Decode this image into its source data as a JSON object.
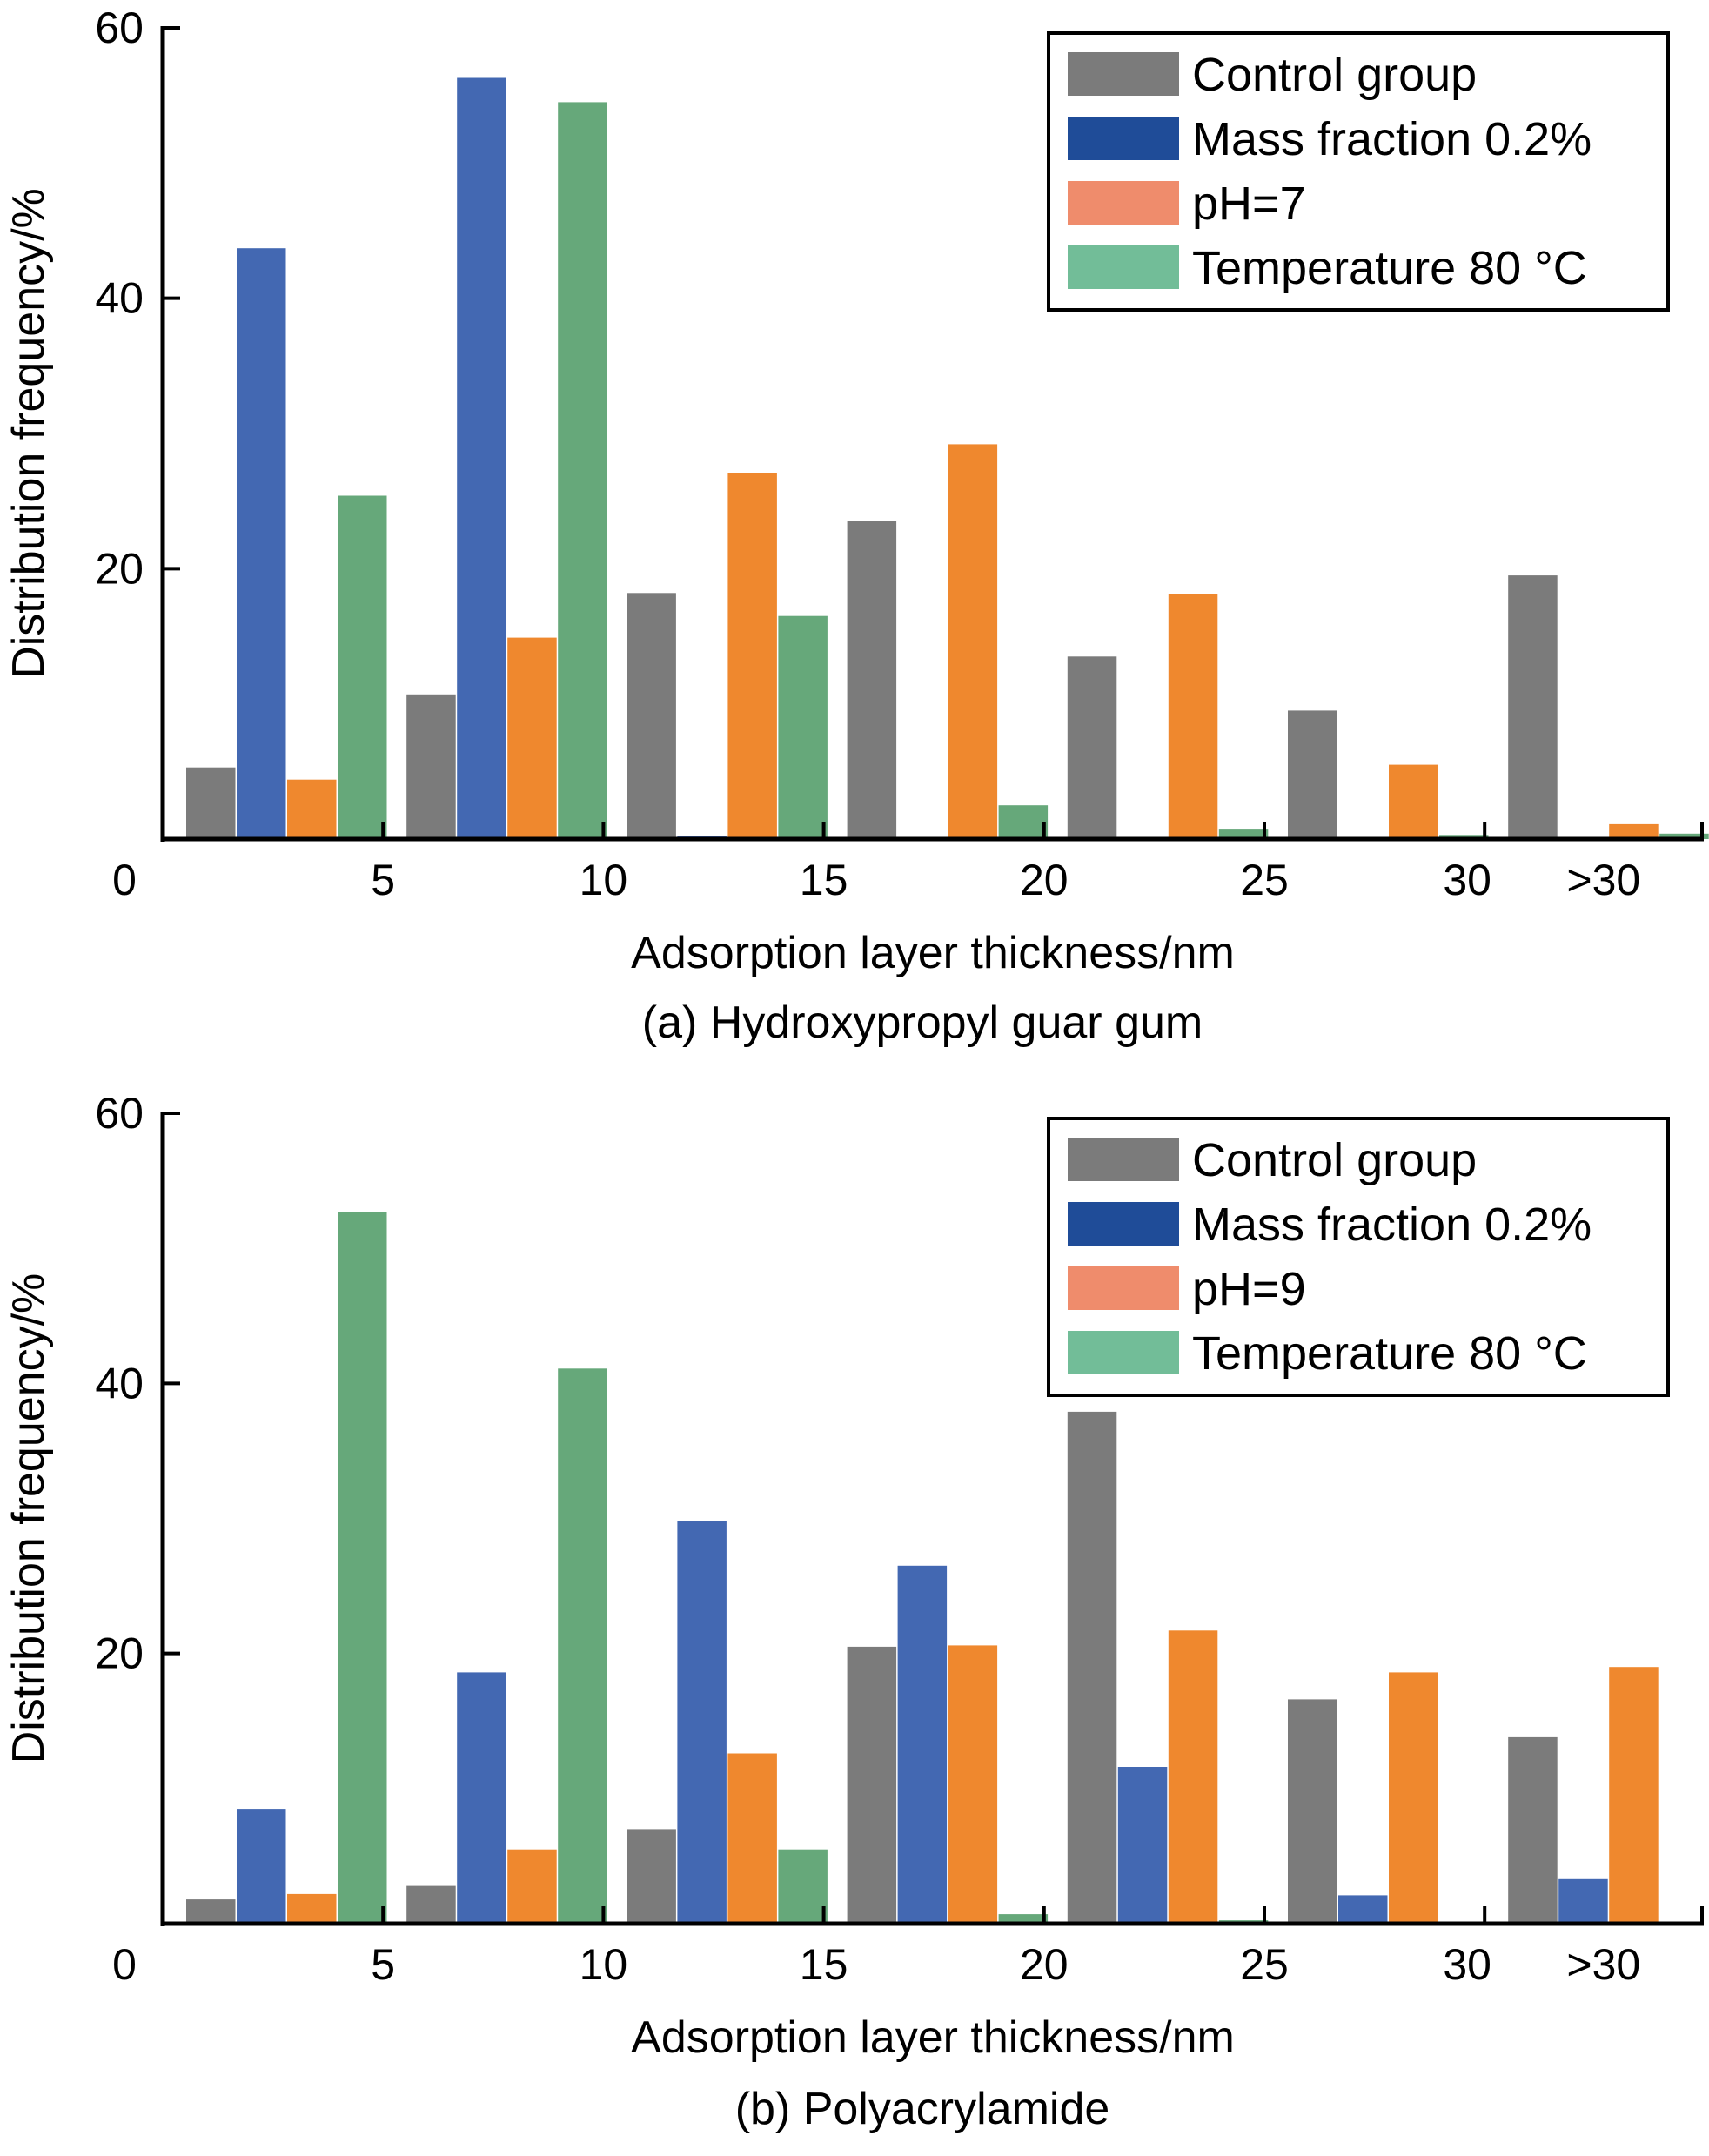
{
  "chart_data": [
    {
      "type": "bar",
      "title": "(a) Hydroxypropyl guar gum",
      "xlabel": "Adsorption layer thickness/nm",
      "ylabel": "Distribution frequency/%",
      "ylim": [
        0,
        60
      ],
      "yticks": [
        "0",
        "20",
        "40",
        "60"
      ],
      "xtick_labels": [
        "0",
        "5",
        "10",
        "15",
        "20",
        "25",
        "30",
        ">30"
      ],
      "categories": [
        "0-5",
        "5-10",
        "10-15",
        "15-20",
        "20-25",
        "25-30",
        ">30"
      ],
      "legend_position": "top-right",
      "grid": false,
      "series": [
        {
          "name": "Control group",
          "color": "#7b7b7b",
          "legend_color": "#7b7b7b",
          "values": [
            5.3,
            10.7,
            18.2,
            23.5,
            13.5,
            9.5,
            19.5
          ]
        },
        {
          "name": "Mass fraction 0.2%",
          "color": "#4368b2",
          "legend_color": "#1f4c98",
          "values": [
            43.7,
            56.3,
            0.2,
            0,
            0,
            0,
            0
          ]
        },
        {
          "name": "pH=7",
          "color": "#ef882e",
          "legend_color": "#ef8c6c",
          "values": [
            4.4,
            14.9,
            27.1,
            29.2,
            18.1,
            5.5,
            1.1
          ]
        },
        {
          "name": "Temperature 80 °C",
          "color": "#66a87a",
          "legend_color": "#72bd98",
          "values": [
            25.4,
            54.5,
            16.5,
            2.5,
            0.7,
            0.3,
            0.4
          ]
        }
      ]
    },
    {
      "type": "bar",
      "title": "(b) Polyacrylamide",
      "xlabel": "Adsorption layer thickness/nm",
      "ylabel": "Distribution frequency/%",
      "ylim": [
        0,
        60
      ],
      "yticks": [
        "0",
        "20",
        "40",
        "60"
      ],
      "xtick_labels": [
        "0",
        "5",
        "10",
        "15",
        "20",
        "25",
        "30",
        ">30"
      ],
      "categories": [
        "0-5",
        "5-10",
        "10-15",
        "15-20",
        "20-25",
        "25-30",
        ">30"
      ],
      "legend_position": "top-right",
      "grid": false,
      "series": [
        {
          "name": "Control group",
          "color": "#7b7b7b",
          "legend_color": "#7b7b7b",
          "values": [
            1.8,
            2.8,
            7.0,
            20.5,
            37.9,
            16.6,
            13.8
          ]
        },
        {
          "name": "Mass fraction 0.2%",
          "color": "#4368b2",
          "legend_color": "#1f4c98",
          "values": [
            8.5,
            18.6,
            29.8,
            26.5,
            11.6,
            2.1,
            3.3
          ]
        },
        {
          "name": "pH=9",
          "color": "#ef882e",
          "legend_color": "#ef8c6c",
          "values": [
            2.2,
            5.5,
            12.6,
            20.6,
            21.7,
            18.6,
            19.0
          ]
        },
        {
          "name": "Temperature 80 °C",
          "color": "#66a87a",
          "legend_color": "#72bd98",
          "values": [
            52.7,
            41.1,
            5.5,
            0.7,
            0.25,
            0,
            0
          ]
        }
      ]
    }
  ]
}
